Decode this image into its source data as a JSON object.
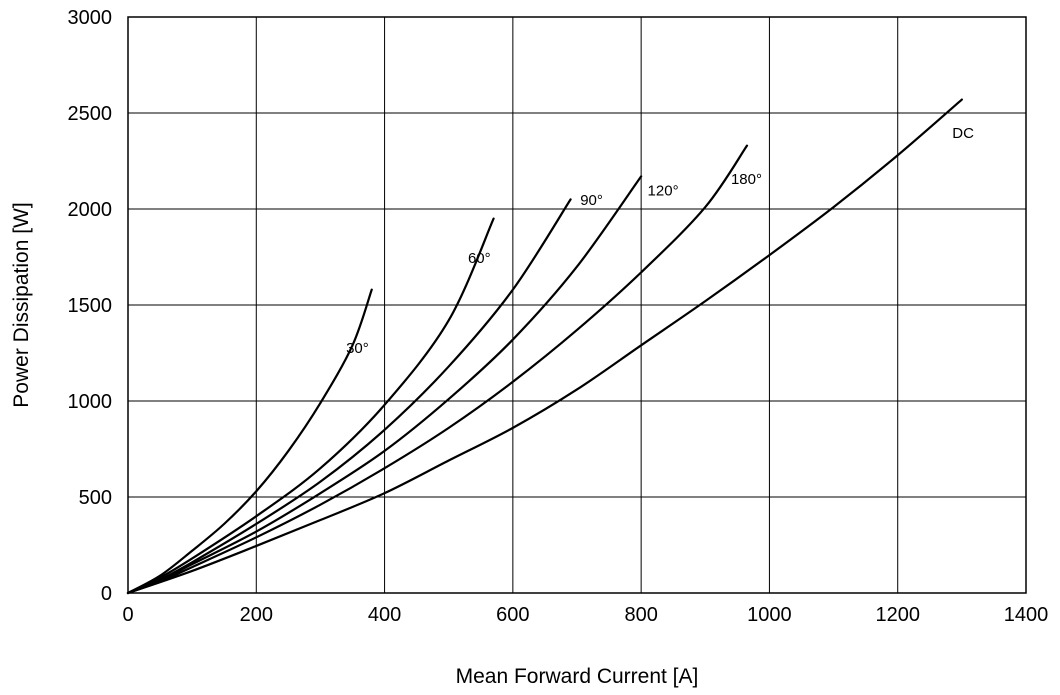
{
  "chart_data": {
    "type": "line",
    "title": "",
    "xlabel": "Mean Forward Current [A]",
    "ylabel": "Power Dissipation [W]",
    "xlim": [
      0,
      1400
    ],
    "ylim": [
      0,
      3000
    ],
    "grid": true,
    "legend": "none",
    "x_ticks": [
      0,
      200,
      400,
      600,
      800,
      1000,
      1200,
      1400
    ],
    "y_ticks": [
      0,
      500,
      1000,
      1500,
      2000,
      2500,
      3000
    ],
    "x_tick_labels": [
      "0",
      "200",
      "400",
      "600",
      "800",
      "1000",
      "1200",
      "1400"
    ],
    "y_tick_labels": [
      "0",
      "500",
      "1000",
      "1500",
      "2000",
      "2500",
      "3000"
    ],
    "series": [
      {
        "name": "30°",
        "label_at": [
          340,
          1250
        ],
        "points": [
          [
            0,
            0
          ],
          [
            50,
            90
          ],
          [
            100,
            220
          ],
          [
            150,
            360
          ],
          [
            200,
            530
          ],
          [
            250,
            740
          ],
          [
            300,
            990
          ],
          [
            350,
            1290
          ],
          [
            380,
            1580
          ]
        ]
      },
      {
        "name": "60°",
        "label_at": [
          530,
          1720
        ],
        "points": [
          [
            0,
            0
          ],
          [
            50,
            80
          ],
          [
            100,
            180
          ],
          [
            200,
            400
          ],
          [
            300,
            650
          ],
          [
            400,
            980
          ],
          [
            500,
            1420
          ],
          [
            570,
            1950
          ]
        ]
      },
      {
        "name": "90°",
        "label_at": [
          705,
          2020
        ],
        "points": [
          [
            0,
            0
          ],
          [
            50,
            70
          ],
          [
            100,
            160
          ],
          [
            200,
            360
          ],
          [
            300,
            580
          ],
          [
            400,
            850
          ],
          [
            500,
            1180
          ],
          [
            600,
            1580
          ],
          [
            690,
            2050
          ]
        ]
      },
      {
        "name": "120°",
        "label_at": [
          810,
          2070
        ],
        "points": [
          [
            0,
            0
          ],
          [
            50,
            65
          ],
          [
            100,
            150
          ],
          [
            200,
            320
          ],
          [
            300,
            520
          ],
          [
            400,
            740
          ],
          [
            500,
            1010
          ],
          [
            600,
            1320
          ],
          [
            700,
            1700
          ],
          [
            800,
            2170
          ]
        ]
      },
      {
        "name": "180°",
        "label_at": [
          940,
          2130
        ],
        "points": [
          [
            0,
            0
          ],
          [
            50,
            60
          ],
          [
            100,
            135
          ],
          [
            200,
            290
          ],
          [
            300,
            460
          ],
          [
            400,
            650
          ],
          [
            500,
            860
          ],
          [
            600,
            1100
          ],
          [
            700,
            1370
          ],
          [
            800,
            1670
          ],
          [
            900,
            2010
          ],
          [
            965,
            2330
          ]
        ]
      },
      {
        "name": "DC",
        "label_at": [
          1285,
          2370
        ],
        "points": [
          [
            0,
            0
          ],
          [
            100,
            115
          ],
          [
            200,
            245
          ],
          [
            300,
            380
          ],
          [
            400,
            520
          ],
          [
            500,
            690
          ],
          [
            600,
            860
          ],
          [
            700,
            1060
          ],
          [
            800,
            1290
          ],
          [
            900,
            1520
          ],
          [
            1000,
            1760
          ],
          [
            1100,
            2010
          ],
          [
            1200,
            2280
          ],
          [
            1300,
            2570
          ]
        ]
      }
    ]
  }
}
